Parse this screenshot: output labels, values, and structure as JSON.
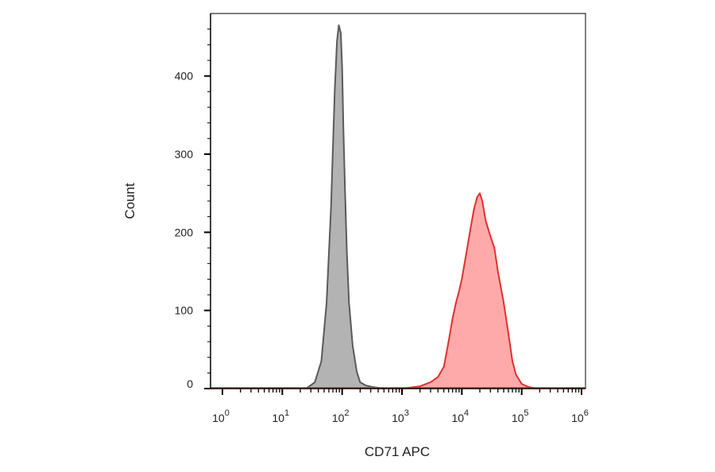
{
  "chart_data": {
    "type": "area",
    "title": "",
    "xlabel": "CD71 APC",
    "ylabel": "Count",
    "x_scale": "log",
    "xlim": [
      1,
      1000000
    ],
    "ylim": [
      0,
      480
    ],
    "x_ticks": [
      {
        "base": "10",
        "exp": "0",
        "value": 1
      },
      {
        "base": "10",
        "exp": "1",
        "value": 10
      },
      {
        "base": "10",
        "exp": "2",
        "value": 100
      },
      {
        "base": "10",
        "exp": "3",
        "value": 1000
      },
      {
        "base": "10",
        "exp": "4",
        "value": 10000
      },
      {
        "base": "10",
        "exp": "5",
        "value": 100000
      },
      {
        "base": "10",
        "exp": "6",
        "value": 1000000
      }
    ],
    "y_ticks": [
      "0",
      "100",
      "200",
      "300",
      "400"
    ],
    "series": [
      {
        "color": "#5a5a5a",
        "fill": "#b3b3b3",
        "x": [
          25,
          35,
          45,
          55,
          65,
          75,
          82,
          88,
          95,
          100,
          105,
          112,
          120,
          130,
          150,
          175,
          200,
          250,
          320,
          500
        ],
        "y": [
          0,
          8,
          35,
          110,
          230,
          380,
          445,
          465,
          455,
          410,
          330,
          250,
          175,
          110,
          55,
          22,
          8,
          4,
          2,
          0
        ]
      },
      {
        "color": "#e03030",
        "fill": "#ffaaaa",
        "x": [
          1000,
          2000,
          3000,
          4000,
          5000,
          6000,
          7000,
          8000,
          9000,
          10000,
          12000,
          14000,
          16000,
          18000,
          20000,
          22000,
          25000,
          30000,
          35000,
          40000,
          50000,
          60000,
          70000,
          80000,
          100000,
          130000,
          180000
        ],
        "y": [
          0,
          3,
          8,
          15,
          28,
          60,
          90,
          110,
          125,
          140,
          175,
          205,
          230,
          245,
          250,
          240,
          215,
          195,
          180,
          150,
          110,
          70,
          35,
          18,
          6,
          2,
          0
        ]
      }
    ],
    "grid": false,
    "legend": "none"
  }
}
